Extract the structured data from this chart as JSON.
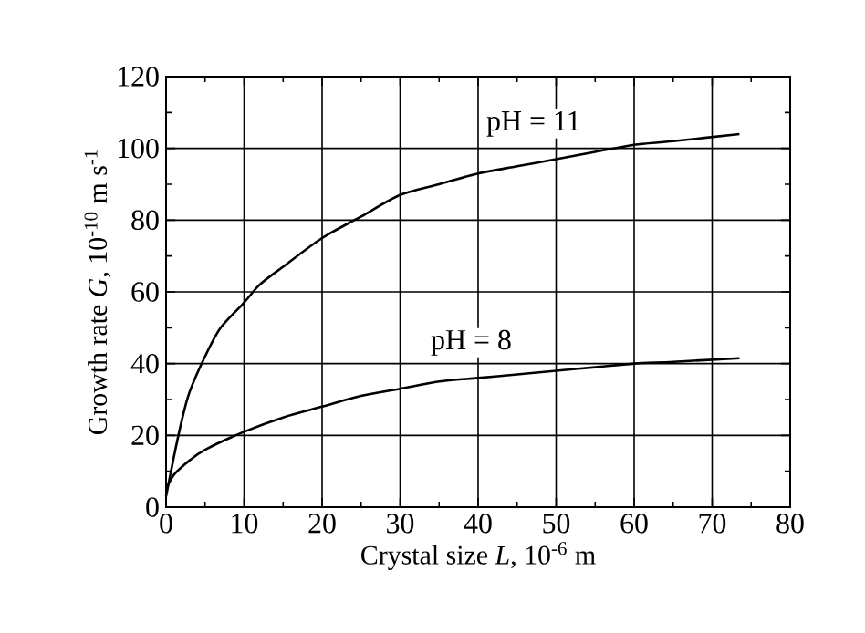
{
  "chart_data": {
    "type": "line",
    "xlabel": "Crystal size *L*, 10$^{-6}$ m",
    "ylabel": "Growth rate *G*, 10$^{-10}$ m s$^{-1}$",
    "xlim": [
      0,
      80
    ],
    "ylim": [
      0,
      120
    ],
    "xticks": [
      0,
      10,
      20,
      30,
      40,
      50,
      60,
      70,
      80
    ],
    "yticks": [
      0,
      20,
      40,
      60,
      80,
      100,
      120
    ],
    "grid": true,
    "marker": "none",
    "line_style": "solid",
    "series": [
      {
        "name": "pH = 11",
        "color": "#000000",
        "x": [
          0,
          1,
          2,
          3,
          5,
          7,
          10,
          12,
          15,
          20,
          25,
          30,
          35,
          40,
          45,
          50,
          55,
          60,
          65,
          73.5
        ],
        "values": [
          3,
          14,
          24,
          32,
          42,
          50,
          57,
          62,
          67,
          75,
          81,
          87,
          90,
          93,
          95,
          97,
          99,
          101,
          102,
          104
        ]
      },
      {
        "name": "pH = 8",
        "color": "#000000",
        "x": [
          0,
          1,
          3,
          5,
          10,
          15,
          20,
          25,
          30,
          35,
          40,
          45,
          50,
          55,
          60,
          65,
          73.5
        ],
        "values": [
          5,
          9,
          13,
          16,
          21,
          25,
          28,
          31,
          33,
          35,
          36,
          37,
          38,
          39,
          40,
          40.5,
          41.5
        ]
      }
    ]
  }
}
